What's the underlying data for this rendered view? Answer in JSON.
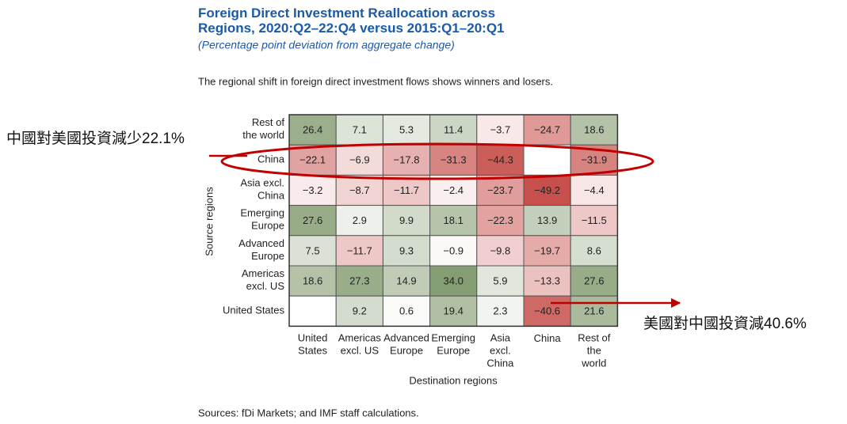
{
  "chart_data": {
    "type": "heatmap",
    "title": "Foreign Direct Investment Reallocation across\nRegions, 2020:Q2–22:Q4 versus 2015:Q1–20:Q1",
    "subtitle": "(Percentage point deviation from aggregate change)",
    "description": "The regional shift in foreign direct investment flows shows winners and losers.",
    "y_label": "Source regions",
    "x_label": "Destination regions",
    "rows": [
      "Rest of\nthe world",
      "China",
      "Asia excl.\nChina",
      "Emerging\nEurope",
      "Advanced\nEurope",
      "Americas\nexcl. US",
      "United States"
    ],
    "columns": [
      "United\nStates",
      "Americas\nexcl. US",
      "Advanced\nEurope",
      "Emerging\nEurope",
      "Asia\nexcl.\nChina",
      "China",
      "Rest of\nthe\nworld"
    ],
    "values": [
      [
        26.4,
        7.1,
        5.3,
        11.4,
        -3.7,
        -24.7,
        18.6
      ],
      [
        -22.1,
        -6.9,
        -17.8,
        -31.3,
        -44.3,
        null,
        -31.9
      ],
      [
        -3.2,
        -8.7,
        -11.7,
        -2.4,
        -23.7,
        -49.2,
        -4.4
      ],
      [
        27.6,
        2.9,
        9.9,
        18.1,
        -22.3,
        13.9,
        -11.5
      ],
      [
        7.5,
        -11.7,
        9.3,
        -0.9,
        -9.8,
        -19.7,
        8.6
      ],
      [
        18.6,
        27.3,
        14.9,
        34.0,
        5.9,
        -13.3,
        27.6
      ],
      [
        null,
        9.2,
        0.6,
        19.4,
        2.3,
        -40.6,
        21.6
      ]
    ],
    "value_labels": [
      [
        "26.4",
        "7.1",
        "5.3",
        "11.4",
        "−3.7",
        "−24.7",
        "18.6"
      ],
      [
        "−22.1",
        "−6.9",
        "−17.8",
        "−31.3",
        "−44.3",
        null,
        "−31.9"
      ],
      [
        "−3.2",
        "−8.7",
        "−11.7",
        "−2.4",
        "−23.7",
        "−49.2",
        "−4.4"
      ],
      [
        "27.6",
        "2.9",
        "9.9",
        "18.1",
        "−22.3",
        "13.9",
        "−11.5"
      ],
      [
        "7.5",
        "−11.7",
        "9.3",
        "−0.9",
        "−9.8",
        "−19.7",
        "8.6"
      ],
      [
        "18.6",
        "27.3",
        "14.9",
        "34.0",
        "5.9",
        "−13.3",
        "27.6"
      ],
      [
        null,
        "9.2",
        "0.6",
        "19.4",
        "2.3",
        "−40.6",
        "21.6"
      ]
    ],
    "colors": [
      "#c7504c",
      "#ffffff",
      "#5b7b41"
    ],
    "annotations": [
      "中國對美國投資減少22.1%",
      "美國對中國投資減40.6%"
    ],
    "source": "Sources: fDi Markets; and IMF staff calculations."
  }
}
